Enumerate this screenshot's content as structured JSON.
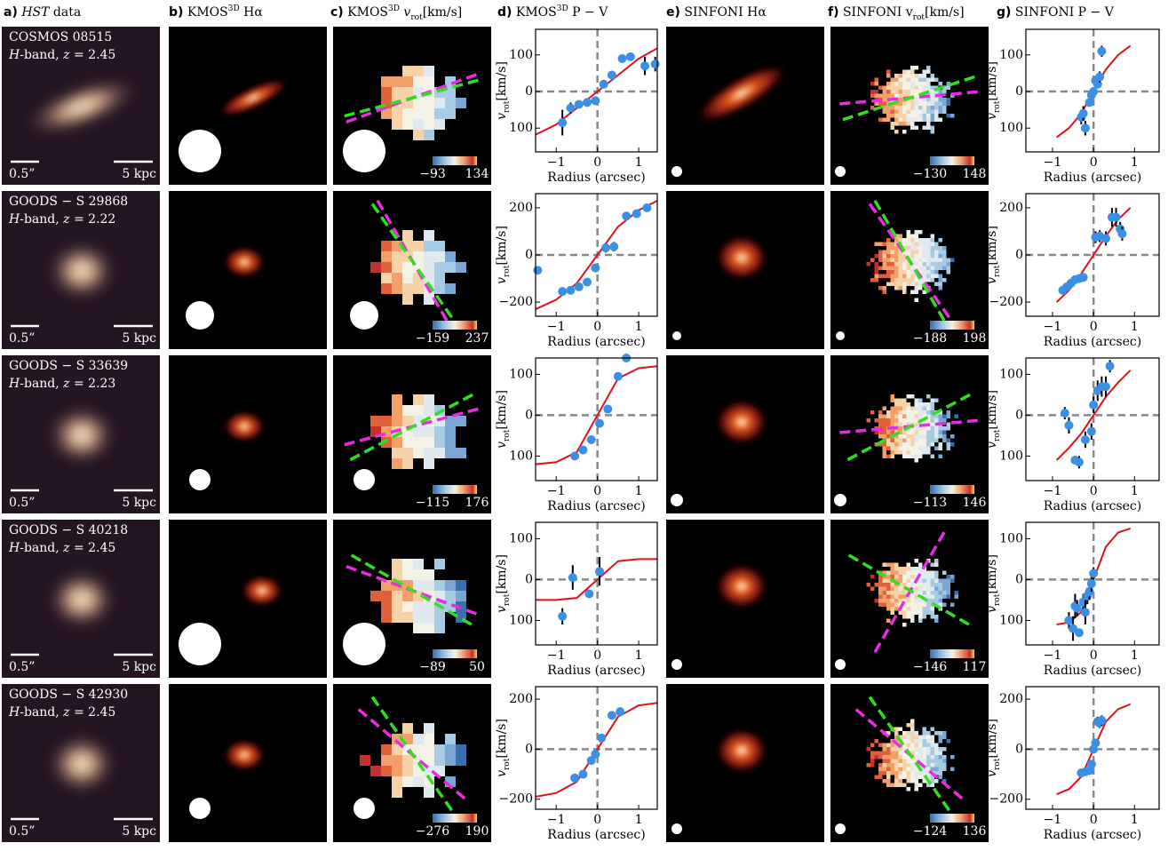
{
  "headers": [
    {
      "letter": "a)",
      "parts": [
        "HST",
        " data"
      ]
    },
    {
      "letter": "b)",
      "parts": [
        "KMOS",
        "3D",
        " Hα"
      ]
    },
    {
      "letter": "c)",
      "parts": [
        "KMOS",
        "3D",
        " v",
        "rot",
        "[km/s]"
      ]
    },
    {
      "letter": "d)",
      "parts": [
        "KMOS",
        "3D",
        " P − V"
      ]
    },
    {
      "letter": "e)",
      "parts": [
        "SINFONI",
        " Hα"
      ]
    },
    {
      "letter": "f)",
      "parts": [
        "SINFONI v",
        "rot",
        "[km/s]"
      ]
    },
    {
      "letter": "g)",
      "parts": [
        "SINFONI P − V"
      ]
    }
  ],
  "scalebar": {
    "angular": "0.5”",
    "physical": "5 kpc"
  },
  "pv_axes": {
    "xlabel": "Radius (arcsec)",
    "ylabel": [
      "v",
      "rot",
      "[km/s]"
    ]
  },
  "galaxies": [
    {
      "name": "COSMOS 08515",
      "band": [
        "H",
        "-band,  ",
        "z",
        " = 2.45"
      ],
      "kmos_cbar": [
        {
          "value": -93,
          "label": "−93"
        },
        134
      ],
      "sinfoni_cbar": [
        {
          "value": -130,
          "label": "−130"
        },
        148
      ],
      "kmos_pv": {
        "xlim": [
          -1.5,
          1.45
        ],
        "ylim": [
          -165,
          170
        ],
        "xticks": [
          {
            "value": -1,
            "label": "−1"
          },
          0,
          1
        ],
        "yticks": [
          {
            "value": -100,
            "label": "100"
          },
          0,
          100
        ],
        "points": {
          "x": [
            -0.85,
            -0.65,
            -0.45,
            -0.25,
            -0.05,
            0.15,
            0.35,
            0.6,
            0.8,
            1.15,
            1.4
          ],
          "y": [
            -85,
            -45,
            -35,
            -30,
            -25,
            20,
            45,
            90,
            95,
            70,
            75
          ],
          "err": [
            35,
            15,
            5,
            5,
            5,
            5,
            5,
            8,
            10,
            25,
            20
          ]
        },
        "model": {
          "x": [
            -1.5,
            -1,
            -0.5,
            0,
            0.5,
            1,
            1.45
          ],
          "y": [
            -118,
            -90,
            -45,
            0,
            45,
            90,
            118
          ]
        }
      },
      "sinfoni_pv": {
        "xlim": [
          -1.65,
          1.6
        ],
        "ylim": [
          -165,
          170
        ],
        "xticks": [
          {
            "value": -1,
            "label": "−1"
          },
          0,
          1
        ],
        "yticks": [
          {
            "value": -100,
            "label": "100"
          },
          0,
          100
        ],
        "points": {
          "x": [
            -0.3,
            -0.25,
            -0.2,
            -0.1,
            -0.05,
            0,
            0.05,
            0.1,
            0.15,
            0.2
          ],
          "y": [
            -70,
            -60,
            -100,
            -30,
            -10,
            0,
            30,
            20,
            40,
            110
          ],
          "err": [
            20,
            20,
            20,
            10,
            10,
            10,
            10,
            10,
            15,
            15
          ]
        },
        "model": {
          "x": [
            -0.9,
            -0.6,
            -0.3,
            0,
            0.3,
            0.6,
            0.9
          ],
          "y": [
            -125,
            -100,
            -60,
            0,
            60,
            100,
            125
          ]
        }
      }
    },
    {
      "name": "GOODS − S 29868",
      "band": [
        "H",
        "-band,  ",
        "z",
        " = 2.22"
      ],
      "kmos_cbar": [
        {
          "value": -159,
          "label": "−159"
        },
        237
      ],
      "sinfoni_cbar": [
        {
          "value": -188,
          "label": "−188"
        },
        198
      ],
      "kmos_pv": {
        "xlim": [
          -1.5,
          1.45
        ],
        "ylim": [
          -260,
          260
        ],
        "xticks": [
          {
            "value": -1,
            "label": "−1"
          },
          0,
          1
        ],
        "yticks": [
          {
            "value": -200,
            "label": "−200"
          },
          0,
          200
        ],
        "points": {
          "x": [
            -1.45,
            -0.85,
            -0.65,
            -0.45,
            -0.25,
            -0.05,
            0.2,
            0.4,
            0.7,
            0.95,
            1.2
          ],
          "y": [
            -65,
            -155,
            -150,
            -135,
            -115,
            -55,
            30,
            35,
            165,
            175,
            200
          ],
          "err": [
            5,
            5,
            5,
            5,
            5,
            10,
            20,
            20,
            10,
            15,
            15
          ]
        },
        "model": {
          "x": [
            -1.5,
            -1,
            -0.5,
            0,
            0.5,
            1,
            1.45
          ],
          "y": [
            -230,
            -190,
            -120,
            0,
            120,
            190,
            230
          ]
        }
      },
      "sinfoni_pv": {
        "xlim": [
          -1.65,
          1.6
        ],
        "ylim": [
          -260,
          260
        ],
        "xticks": [
          {
            "value": -1,
            "label": "−1"
          },
          0,
          1
        ],
        "yticks": [
          {
            "value": -200,
            "label": "−200"
          },
          0,
          200
        ],
        "points": {
          "x": [
            -0.75,
            -0.65,
            -0.55,
            -0.45,
            -0.35,
            -0.25,
            0.05,
            0.15,
            0.3,
            0.45,
            0.55,
            0.65,
            0.7
          ],
          "y": [
            -150,
            -135,
            -120,
            -105,
            -100,
            -95,
            75,
            80,
            70,
            160,
            160,
            110,
            90
          ],
          "err": [
            5,
            5,
            5,
            5,
            5,
            10,
            25,
            25,
            30,
            40,
            40,
            30,
            30
          ]
        },
        "model": {
          "x": [
            -0.9,
            -0.6,
            -0.3,
            0,
            0.3,
            0.6,
            0.9
          ],
          "y": [
            -200,
            -150,
            -80,
            0,
            80,
            150,
            200
          ]
        }
      }
    },
    {
      "name": "GOODS − S 33639",
      "band": [
        "H",
        "-band,  ",
        "z",
        " = 2.23"
      ],
      "kmos_cbar": [
        {
          "value": -115,
          "label": "−115"
        },
        176
      ],
      "sinfoni_cbar": [
        {
          "value": -113,
          "label": "−113"
        },
        146
      ],
      "kmos_pv": {
        "xlim": [
          -1.5,
          1.45
        ],
        "ylim": [
          -160,
          140
        ],
        "xticks": [
          {
            "value": -1,
            "label": "−1"
          },
          0,
          1
        ],
        "yticks": [
          {
            "value": -100,
            "label": "100"
          },
          0,
          100
        ],
        "points": {
          "x": [
            -0.55,
            -0.35,
            -0.15,
            0.05,
            0.25,
            0.5,
            0.7
          ],
          "y": [
            -100,
            -85,
            -60,
            -20,
            15,
            95,
            140
          ],
          "err": [
            5,
            5,
            10,
            5,
            5,
            5,
            5
          ]
        },
        "model": {
          "x": [
            -1.5,
            -1,
            -0.5,
            0,
            0.5,
            1,
            1.45
          ],
          "y": [
            -120,
            -115,
            -90,
            0,
            90,
            115,
            120
          ]
        }
      },
      "sinfoni_pv": {
        "xlim": [
          -1.65,
          1.6
        ],
        "ylim": [
          -160,
          140
        ],
        "xticks": [
          {
            "value": -1,
            "label": "−1"
          },
          0,
          1
        ],
        "yticks": [
          {
            "value": -100,
            "label": "100"
          },
          0,
          100
        ],
        "points": {
          "x": [
            -0.7,
            -0.6,
            -0.45,
            -0.35,
            -0.2,
            -0.05,
            0,
            0.1,
            0.2,
            0.3,
            0.4
          ],
          "y": [
            5,
            -25,
            -110,
            -115,
            -60,
            -40,
            25,
            60,
            70,
            70,
            120
          ],
          "err": [
            15,
            20,
            10,
            15,
            20,
            20,
            20,
            25,
            25,
            25,
            15
          ]
        },
        "model": {
          "x": [
            -0.9,
            -0.6,
            -0.3,
            0,
            0.3,
            0.6,
            0.9
          ],
          "y": [
            -110,
            -80,
            -45,
            0,
            45,
            80,
            110
          ]
        }
      }
    },
    {
      "name": "GOODS − S 40218",
      "band": [
        "H",
        "-band,  ",
        "z",
        " = 2.45"
      ],
      "kmos_cbar": [
        {
          "value": -89,
          "label": "−89"
        },
        50
      ],
      "sinfoni_cbar": [
        {
          "value": -146,
          "label": "−146"
        },
        117
      ],
      "kmos_pv": {
        "xlim": [
          -1.5,
          1.45
        ],
        "ylim": [
          -160,
          140
        ],
        "xticks": [
          {
            "value": -1,
            "label": "−1"
          },
          0,
          1
        ],
        "yticks": [
          {
            "value": -100,
            "label": "100"
          },
          0,
          100
        ],
        "points": {
          "x": [
            -0.85,
            -0.6,
            -0.2,
            0.05
          ],
          "y": [
            -90,
            5,
            -35,
            20
          ],
          "err": [
            20,
            30,
            5,
            35
          ]
        },
        "model": {
          "x": [
            -1.5,
            -1,
            -0.5,
            0,
            0.5,
            1,
            1.45
          ],
          "y": [
            -50,
            -50,
            -45,
            0,
            45,
            50,
            50
          ]
        }
      },
      "sinfoni_pv": {
        "xlim": [
          -1.65,
          1.6
        ],
        "ylim": [
          -160,
          140
        ],
        "xticks": [
          {
            "value": -1,
            "label": "−1"
          },
          0,
          1
        ],
        "yticks": [
          {
            "value": -100,
            "label": "100"
          },
          0,
          100
        ],
        "points": {
          "x": [
            -0.6,
            -0.5,
            -0.45,
            -0.4,
            -0.35,
            -0.25,
            -0.2,
            -0.15,
            -0.1,
            -0.05,
            0
          ],
          "y": [
            -100,
            -120,
            -65,
            -70,
            -130,
            -55,
            -80,
            -40,
            -30,
            -10,
            15
          ],
          "err": [
            20,
            30,
            30,
            20,
            10,
            20,
            30,
            20,
            20,
            20,
            15
          ]
        },
        "model": {
          "x": [
            -0.9,
            -0.6,
            -0.3,
            0,
            0.3,
            0.6,
            0.9
          ],
          "y": [
            -110,
            -105,
            -80,
            0,
            80,
            115,
            125
          ]
        }
      }
    },
    {
      "name": "GOODS − S 42930",
      "band": [
        "H",
        "-band,  ",
        "z",
        " = 2.45"
      ],
      "kmos_cbar": [
        {
          "value": -276,
          "label": "−276"
        },
        190
      ],
      "sinfoni_cbar": [
        {
          "value": -124,
          "label": "−124"
        },
        136
      ],
      "kmos_pv": {
        "xlim": [
          -1.5,
          1.45
        ],
        "ylim": [
          -240,
          250
        ],
        "xticks": [
          {
            "value": -1,
            "label": "−1"
          },
          0,
          1
        ],
        "yticks": [
          {
            "value": -200,
            "label": "−200"
          },
          0,
          200
        ],
        "points": {
          "x": [
            -0.55,
            -0.35,
            -0.15,
            -0.05,
            0.1,
            0.35,
            0.55
          ],
          "y": [
            -115,
            -100,
            -45,
            -20,
            45,
            135,
            150
          ],
          "err": [
            10,
            5,
            5,
            5,
            5,
            5,
            5
          ]
        },
        "model": {
          "x": [
            -1.5,
            -1,
            -0.5,
            0,
            0.5,
            1,
            1.45
          ],
          "y": [
            -190,
            -175,
            -130,
            0,
            130,
            175,
            185
          ]
        }
      },
      "sinfoni_pv": {
        "xlim": [
          -1.65,
          1.6
        ],
        "ylim": [
          -240,
          250
        ],
        "xticks": [
          {
            "value": -1,
            "label": "−1"
          },
          0,
          1
        ],
        "yticks": [
          {
            "value": -200,
            "label": "−200"
          },
          0,
          200
        ],
        "points": {
          "x": [
            -0.3,
            -0.2,
            -0.1,
            -0.05,
            0,
            0.05,
            0.1,
            0.15,
            0.2
          ],
          "y": [
            -95,
            -90,
            -85,
            -60,
            0,
            25,
            110,
            105,
            115
          ],
          "err": [
            10,
            10,
            10,
            10,
            15,
            15,
            20,
            20,
            20
          ]
        },
        "model": {
          "x": [
            -0.9,
            -0.6,
            -0.3,
            0,
            0.3,
            0.6,
            0.9
          ],
          "y": [
            -180,
            -160,
            -110,
            0,
            110,
            160,
            180
          ]
        }
      }
    }
  ]
}
